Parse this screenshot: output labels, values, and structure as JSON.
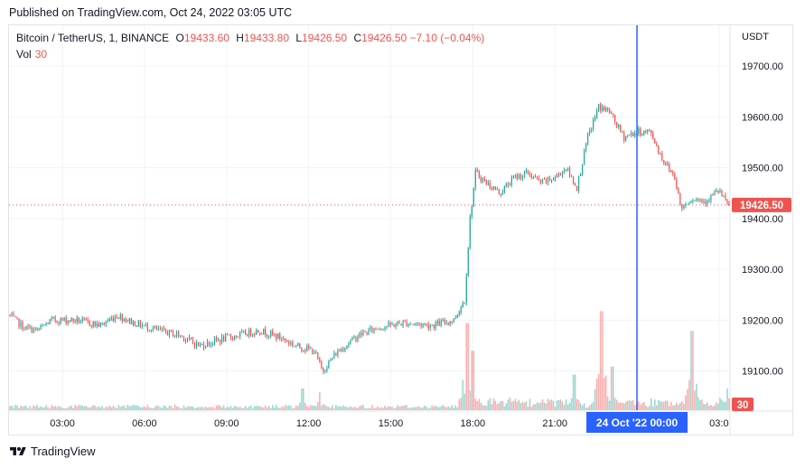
{
  "header": {
    "published": "Published on TradingView.com, Oct 24, 2022 03:05 UTC"
  },
  "legend": {
    "symbol": "Bitcoin / TetherUS, 1, BINANCE",
    "open_label": "O",
    "open": "19433.60",
    "high_label": "H",
    "high": "19433.80",
    "low_label": "L",
    "low": "19426.50",
    "close_label": "C",
    "close": "19426.50",
    "change": "−7.10 (−0.04%)",
    "volume_label": "Vol",
    "volume": "30"
  },
  "currency": "USDT",
  "price_badge": "19426.50",
  "volume_badge": "30",
  "crosshair_label": "24 Oct '22   00:00",
  "footer": {
    "brand": "TradingView"
  },
  "colors": {
    "up": "#26a69a",
    "down": "#ef5350",
    "crosshair": "#2962ff",
    "grid": "#f0f3fa"
  },
  "chart_data": {
    "type": "candlestick",
    "y_ticks": [
      "19700.00",
      "19600.00",
      "19500.00",
      "19400.00",
      "19300.00",
      "19200.00",
      "19100.00"
    ],
    "y_tick_values": [
      19700,
      19600,
      19500,
      19400,
      19300,
      19200,
      19100
    ],
    "ylim": [
      19023,
      19780
    ],
    "x_ticks": [
      "03:00",
      "06:00",
      "09:00",
      "12:00",
      "15:00",
      "18:00",
      "21:00",
      "03:0"
    ],
    "x_tick_hours": [
      3,
      6,
      9,
      12,
      15,
      18,
      21,
      27
    ],
    "xlim_hours": [
      1.05,
      27.4
    ],
    "crosshair_hour": 24,
    "last_price": 19426.5,
    "price_path": [
      {
        "h": 1.05,
        "p": 19210
      },
      {
        "h": 1.6,
        "p": 19185
      },
      {
        "h": 2.1,
        "p": 19180
      },
      {
        "h": 2.6,
        "p": 19200
      },
      {
        "h": 3.5,
        "p": 19200
      },
      {
        "h": 4.4,
        "p": 19190
      },
      {
        "h": 5.0,
        "p": 19210
      },
      {
        "h": 5.6,
        "p": 19195
      },
      {
        "h": 6.5,
        "p": 19180
      },
      {
        "h": 7.3,
        "p": 19170
      },
      {
        "h": 8.0,
        "p": 19150
      },
      {
        "h": 9.0,
        "p": 19165
      },
      {
        "h": 10.2,
        "p": 19180
      },
      {
        "h": 11.0,
        "p": 19165
      },
      {
        "h": 11.5,
        "p": 19150
      },
      {
        "h": 12.2,
        "p": 19140
      },
      {
        "h": 12.5,
        "p": 19100
      },
      {
        "h": 13.0,
        "p": 19135
      },
      {
        "h": 13.8,
        "p": 19170
      },
      {
        "h": 14.5,
        "p": 19185
      },
      {
        "h": 15.5,
        "p": 19195
      },
      {
        "h": 16.5,
        "p": 19190
      },
      {
        "h": 17.3,
        "p": 19200
      },
      {
        "h": 17.7,
        "p": 19240
      },
      {
        "h": 17.9,
        "p": 19400
      },
      {
        "h": 18.1,
        "p": 19490
      },
      {
        "h": 18.5,
        "p": 19470
      },
      {
        "h": 19.0,
        "p": 19450
      },
      {
        "h": 19.5,
        "p": 19480
      },
      {
        "h": 20.0,
        "p": 19490
      },
      {
        "h": 20.5,
        "p": 19470
      },
      {
        "h": 21.0,
        "p": 19480
      },
      {
        "h": 21.4,
        "p": 19500
      },
      {
        "h": 21.8,
        "p": 19460
      },
      {
        "h": 22.2,
        "p": 19560
      },
      {
        "h": 22.6,
        "p": 19620
      },
      {
        "h": 23.0,
        "p": 19610
      },
      {
        "h": 23.5,
        "p": 19560
      },
      {
        "h": 24.0,
        "p": 19570
      },
      {
        "h": 24.5,
        "p": 19570
      },
      {
        "h": 24.9,
        "p": 19520
      },
      {
        "h": 25.4,
        "p": 19480
      },
      {
        "h": 25.6,
        "p": 19420
      },
      {
        "h": 26.0,
        "p": 19440
      },
      {
        "h": 26.5,
        "p": 19435
      },
      {
        "h": 27.0,
        "p": 19455
      },
      {
        "h": 27.3,
        "p": 19426.5
      }
    ],
    "volume_spikes": [
      {
        "h": 11.8,
        "v": 55
      },
      {
        "h": 12.4,
        "v": 45
      },
      {
        "h": 17.8,
        "v": 220
      },
      {
        "h": 18.0,
        "v": 150
      },
      {
        "h": 21.7,
        "v": 90
      },
      {
        "h": 22.7,
        "v": 250
      },
      {
        "h": 23.1,
        "v": 110
      },
      {
        "h": 26.0,
        "v": 200
      },
      {
        "h": 27.3,
        "v": 55
      }
    ],
    "volume_max": 260
  }
}
